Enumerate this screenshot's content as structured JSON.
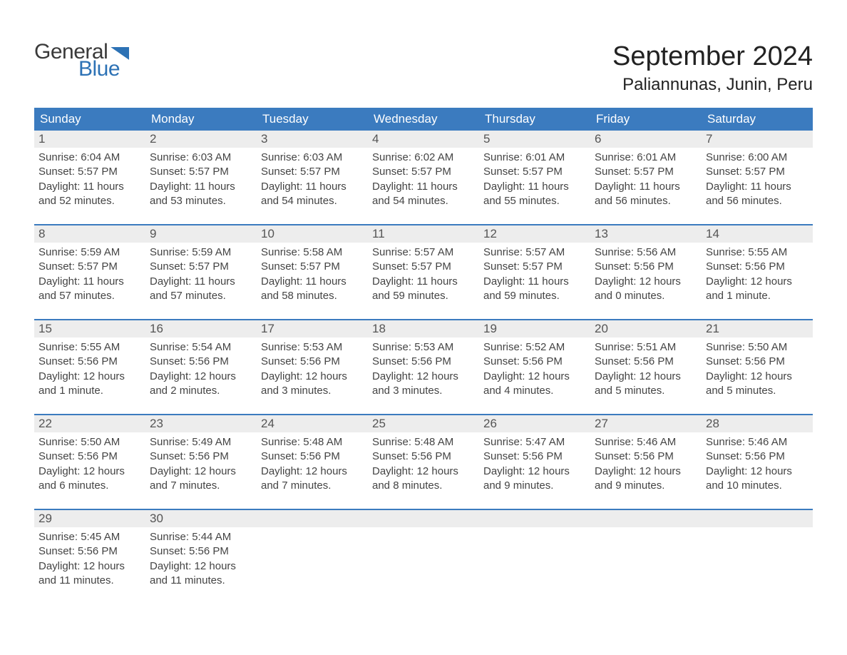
{
  "logo": {
    "word1": "General",
    "word2": "Blue"
  },
  "title": "September 2024",
  "location": "Paliannunas, Junin, Peru",
  "colors": {
    "brand_blue": "#2d72b5",
    "header_blue": "#3b7bbf",
    "light_gray": "#ededed",
    "divider_blue": "#3b7bbf",
    "text_dark": "#333333",
    "background": "#ffffff"
  },
  "typography": {
    "title_fontsize": 38,
    "location_fontsize": 24,
    "dow_fontsize": 17,
    "daynum_fontsize": 17,
    "body_fontsize": 15,
    "font_family": "Arial"
  },
  "days_of_week": [
    "Sunday",
    "Monday",
    "Tuesday",
    "Wednesday",
    "Thursday",
    "Friday",
    "Saturday"
  ],
  "weeks": [
    [
      {
        "n": "1",
        "sunrise": "Sunrise: 6:04 AM",
        "sunset": "Sunset: 5:57 PM",
        "d1": "Daylight: 11 hours",
        "d2": "and 52 minutes."
      },
      {
        "n": "2",
        "sunrise": "Sunrise: 6:03 AM",
        "sunset": "Sunset: 5:57 PM",
        "d1": "Daylight: 11 hours",
        "d2": "and 53 minutes."
      },
      {
        "n": "3",
        "sunrise": "Sunrise: 6:03 AM",
        "sunset": "Sunset: 5:57 PM",
        "d1": "Daylight: 11 hours",
        "d2": "and 54 minutes."
      },
      {
        "n": "4",
        "sunrise": "Sunrise: 6:02 AM",
        "sunset": "Sunset: 5:57 PM",
        "d1": "Daylight: 11 hours",
        "d2": "and 54 minutes."
      },
      {
        "n": "5",
        "sunrise": "Sunrise: 6:01 AM",
        "sunset": "Sunset: 5:57 PM",
        "d1": "Daylight: 11 hours",
        "d2": "and 55 minutes."
      },
      {
        "n": "6",
        "sunrise": "Sunrise: 6:01 AM",
        "sunset": "Sunset: 5:57 PM",
        "d1": "Daylight: 11 hours",
        "d2": "and 56 minutes."
      },
      {
        "n": "7",
        "sunrise": "Sunrise: 6:00 AM",
        "sunset": "Sunset: 5:57 PM",
        "d1": "Daylight: 11 hours",
        "d2": "and 56 minutes."
      }
    ],
    [
      {
        "n": "8",
        "sunrise": "Sunrise: 5:59 AM",
        "sunset": "Sunset: 5:57 PM",
        "d1": "Daylight: 11 hours",
        "d2": "and 57 minutes."
      },
      {
        "n": "9",
        "sunrise": "Sunrise: 5:59 AM",
        "sunset": "Sunset: 5:57 PM",
        "d1": "Daylight: 11 hours",
        "d2": "and 57 minutes."
      },
      {
        "n": "10",
        "sunrise": "Sunrise: 5:58 AM",
        "sunset": "Sunset: 5:57 PM",
        "d1": "Daylight: 11 hours",
        "d2": "and 58 minutes."
      },
      {
        "n": "11",
        "sunrise": "Sunrise: 5:57 AM",
        "sunset": "Sunset: 5:57 PM",
        "d1": "Daylight: 11 hours",
        "d2": "and 59 minutes."
      },
      {
        "n": "12",
        "sunrise": "Sunrise: 5:57 AM",
        "sunset": "Sunset: 5:57 PM",
        "d1": "Daylight: 11 hours",
        "d2": "and 59 minutes."
      },
      {
        "n": "13",
        "sunrise": "Sunrise: 5:56 AM",
        "sunset": "Sunset: 5:56 PM",
        "d1": "Daylight: 12 hours",
        "d2": "and 0 minutes."
      },
      {
        "n": "14",
        "sunrise": "Sunrise: 5:55 AM",
        "sunset": "Sunset: 5:56 PM",
        "d1": "Daylight: 12 hours",
        "d2": "and 1 minute."
      }
    ],
    [
      {
        "n": "15",
        "sunrise": "Sunrise: 5:55 AM",
        "sunset": "Sunset: 5:56 PM",
        "d1": "Daylight: 12 hours",
        "d2": "and 1 minute."
      },
      {
        "n": "16",
        "sunrise": "Sunrise: 5:54 AM",
        "sunset": "Sunset: 5:56 PM",
        "d1": "Daylight: 12 hours",
        "d2": "and 2 minutes."
      },
      {
        "n": "17",
        "sunrise": "Sunrise: 5:53 AM",
        "sunset": "Sunset: 5:56 PM",
        "d1": "Daylight: 12 hours",
        "d2": "and 3 minutes."
      },
      {
        "n": "18",
        "sunrise": "Sunrise: 5:53 AM",
        "sunset": "Sunset: 5:56 PM",
        "d1": "Daylight: 12 hours",
        "d2": "and 3 minutes."
      },
      {
        "n": "19",
        "sunrise": "Sunrise: 5:52 AM",
        "sunset": "Sunset: 5:56 PM",
        "d1": "Daylight: 12 hours",
        "d2": "and 4 minutes."
      },
      {
        "n": "20",
        "sunrise": "Sunrise: 5:51 AM",
        "sunset": "Sunset: 5:56 PM",
        "d1": "Daylight: 12 hours",
        "d2": "and 5 minutes."
      },
      {
        "n": "21",
        "sunrise": "Sunrise: 5:50 AM",
        "sunset": "Sunset: 5:56 PM",
        "d1": "Daylight: 12 hours",
        "d2": "and 5 minutes."
      }
    ],
    [
      {
        "n": "22",
        "sunrise": "Sunrise: 5:50 AM",
        "sunset": "Sunset: 5:56 PM",
        "d1": "Daylight: 12 hours",
        "d2": "and 6 minutes."
      },
      {
        "n": "23",
        "sunrise": "Sunrise: 5:49 AM",
        "sunset": "Sunset: 5:56 PM",
        "d1": "Daylight: 12 hours",
        "d2": "and 7 minutes."
      },
      {
        "n": "24",
        "sunrise": "Sunrise: 5:48 AM",
        "sunset": "Sunset: 5:56 PM",
        "d1": "Daylight: 12 hours",
        "d2": "and 7 minutes."
      },
      {
        "n": "25",
        "sunrise": "Sunrise: 5:48 AM",
        "sunset": "Sunset: 5:56 PM",
        "d1": "Daylight: 12 hours",
        "d2": "and 8 minutes."
      },
      {
        "n": "26",
        "sunrise": "Sunrise: 5:47 AM",
        "sunset": "Sunset: 5:56 PM",
        "d1": "Daylight: 12 hours",
        "d2": "and 9 minutes."
      },
      {
        "n": "27",
        "sunrise": "Sunrise: 5:46 AM",
        "sunset": "Sunset: 5:56 PM",
        "d1": "Daylight: 12 hours",
        "d2": "and 9 minutes."
      },
      {
        "n": "28",
        "sunrise": "Sunrise: 5:46 AM",
        "sunset": "Sunset: 5:56 PM",
        "d1": "Daylight: 12 hours",
        "d2": "and 10 minutes."
      }
    ],
    [
      {
        "n": "29",
        "sunrise": "Sunrise: 5:45 AM",
        "sunset": "Sunset: 5:56 PM",
        "d1": "Daylight: 12 hours",
        "d2": "and 11 minutes."
      },
      {
        "n": "30",
        "sunrise": "Sunrise: 5:44 AM",
        "sunset": "Sunset: 5:56 PM",
        "d1": "Daylight: 12 hours",
        "d2": "and 11 minutes."
      },
      {
        "n": "",
        "sunrise": "",
        "sunset": "",
        "d1": "",
        "d2": ""
      },
      {
        "n": "",
        "sunrise": "",
        "sunset": "",
        "d1": "",
        "d2": ""
      },
      {
        "n": "",
        "sunrise": "",
        "sunset": "",
        "d1": "",
        "d2": ""
      },
      {
        "n": "",
        "sunrise": "",
        "sunset": "",
        "d1": "",
        "d2": ""
      },
      {
        "n": "",
        "sunrise": "",
        "sunset": "",
        "d1": "",
        "d2": ""
      }
    ]
  ]
}
